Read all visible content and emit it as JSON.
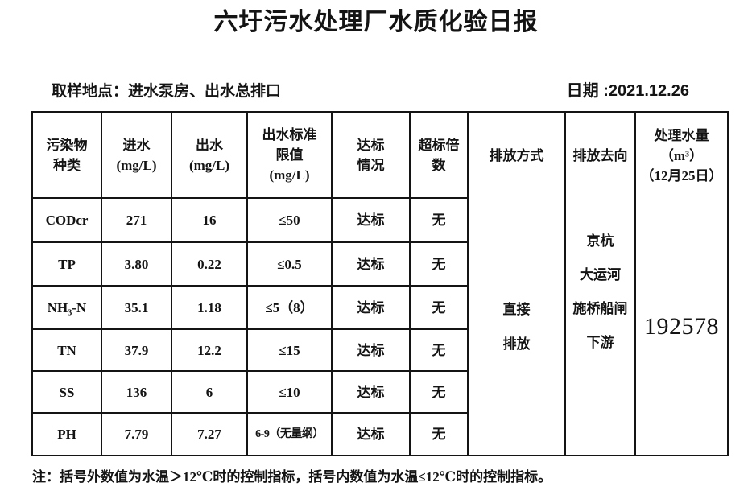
{
  "title": "六圩污水处理厂水质化验日报",
  "meta": {
    "sampling_location": "取样地点：进水泵房、出水总排口",
    "date": "日期 :2021.12.26"
  },
  "table": {
    "headers": {
      "pollutant": "污染物\n种类",
      "inflow": "进水\n(mg/L)",
      "outflow": "出水\n(mg/L)",
      "limit": "出水标准\n限值\n(mg/L)",
      "compliance": "达标\n情况",
      "exceed": "超标倍\n数",
      "discharge_mode": "排放方式",
      "discharge_destination": "排放去向",
      "volume": "处理水量\n（m³）\n（12月25日）"
    },
    "rows": [
      {
        "name": "CODcr",
        "inflow": "271",
        "outflow": "16",
        "limit": "≤50",
        "status": "达标",
        "exceed": "无"
      },
      {
        "name": "TP",
        "inflow": "3.80",
        "outflow": "0.22",
        "limit": "≤0.5",
        "status": "达标",
        "exceed": "无"
      },
      {
        "name": "NH₃-N",
        "inflow": "35.1",
        "outflow": "1.18",
        "limit": "≤5（8）",
        "status": "达标",
        "exceed": "无"
      },
      {
        "name": "TN",
        "inflow": "37.9",
        "outflow": "12.2",
        "limit": "≤15",
        "status": "达标",
        "exceed": "无"
      },
      {
        "name": "SS",
        "inflow": "136",
        "outflow": "6",
        "limit": "≤10",
        "status": "达标",
        "exceed": "无"
      },
      {
        "name": "PH",
        "inflow": "7.79",
        "outflow": "7.27",
        "limit": "6-9（无量纲）",
        "status": "达标",
        "exceed": "无"
      }
    ],
    "merged": {
      "discharge_mode": "直接\n排放",
      "discharge_destination": "京杭\n大运河\n施桥船闸\n下游",
      "volume": "192578"
    }
  },
  "note": "注：括号外数值为水温＞12℃时的控制指标，括号内数值为水温≤12℃时的控制指标。"
}
